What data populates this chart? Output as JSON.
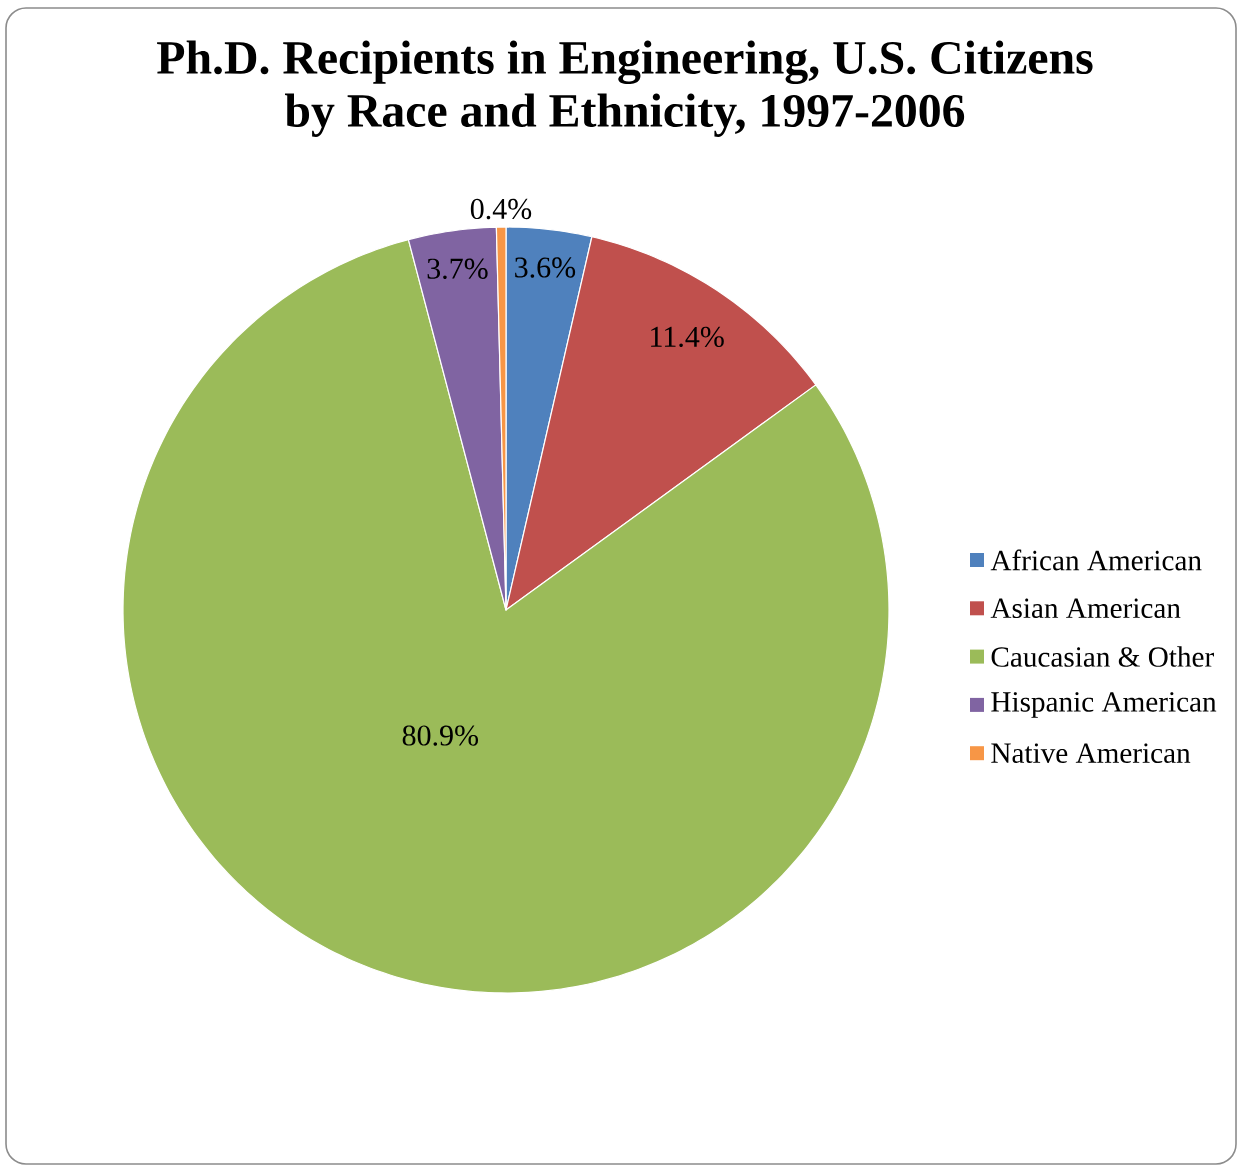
{
  "chart_data": {
    "type": "pie",
    "title": "Ph.D. Recipients in Engineering, U.S. Citizens by Race and Ethnicity, 1997-2006",
    "categories": [
      "African American",
      "Asian American",
      "Caucasian & Other",
      "Hispanic American",
      "Native American"
    ],
    "values": [
      3.6,
      11.4,
      80.9,
      3.7,
      0.4
    ],
    "colors": [
      "#4f81bd",
      "#c0504d",
      "#9bbb59",
      "#8064a2",
      "#f79646"
    ],
    "value_labels": [
      "3.6%",
      "11.4%",
      "80.9%",
      "3.7%",
      "0.4%"
    ],
    "legend": "right"
  }
}
